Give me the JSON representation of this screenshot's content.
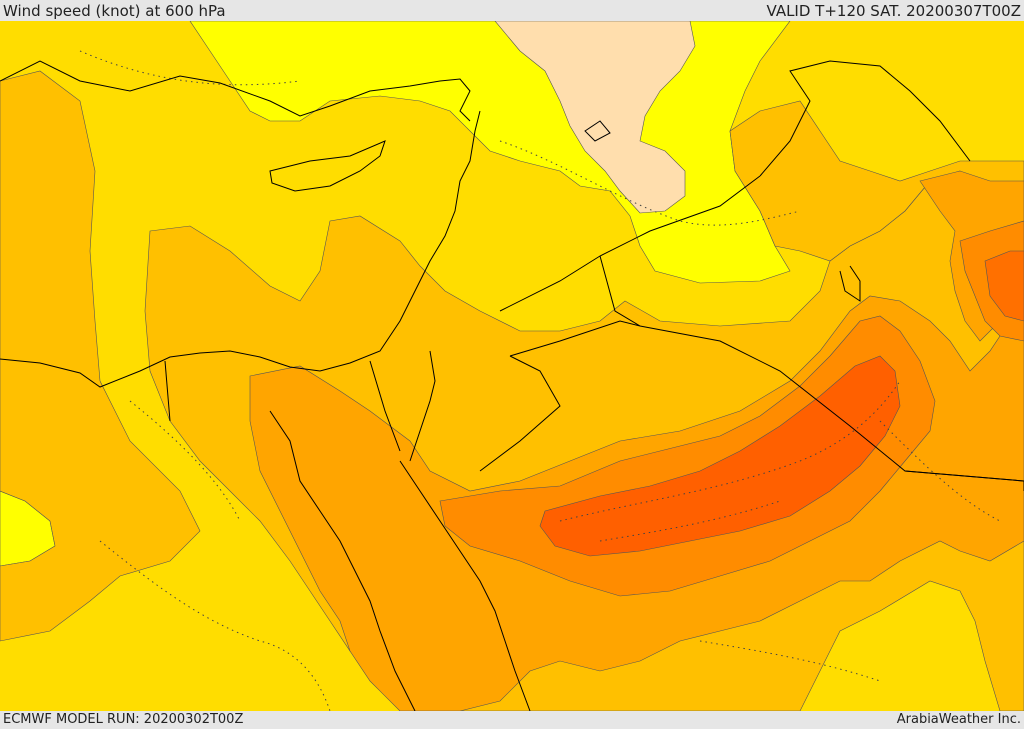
{
  "header": {
    "title": "Wind speed (knot) at 600 hPa",
    "valid_time": "VALID T+120 SAT. 20200307T00Z"
  },
  "footer": {
    "model_run": "ECMWF MODEL RUN: 20200302T00Z",
    "credit": "ArabiaWeather Inc."
  },
  "map": {
    "fill_colors": {
      "lightest": "#ffdead",
      "yellow_bright": "#ffff00",
      "yellow": "#ffdd00",
      "gold": "#ffc000",
      "orange_light": "#ffa500",
      "orange": "#ff8c00",
      "orange_dark": "#ff6000"
    },
    "boundary_color": "#000000"
  }
}
